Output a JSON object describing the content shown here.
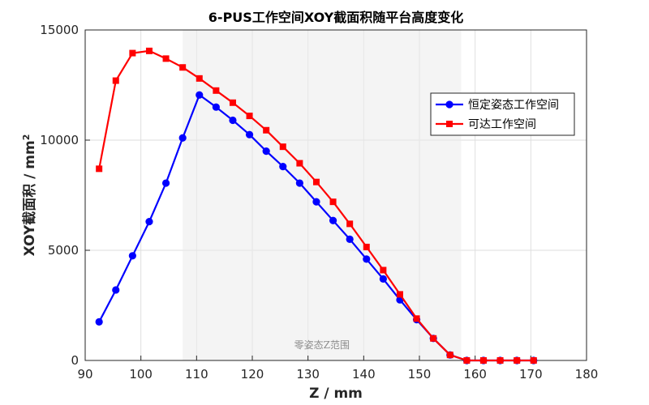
{
  "chart_data": {
    "type": "line",
    "title": "6-PUS工作空间XOY截面积随平台高度变化",
    "xlabel": "Z / mm",
    "ylabel": "XOY截面积 / mm",
    "ylabel_superscript": "2",
    "xlim": [
      90,
      180
    ],
    "ylim": [
      0,
      15000
    ],
    "x_ticks": [
      "90",
      "100",
      "110",
      "120",
      "130",
      "140",
      "150",
      "160",
      "170",
      "180"
    ],
    "y_ticks": [
      "0",
      "5000",
      "10000",
      "15000"
    ],
    "grid": true,
    "legend_position": "right",
    "shaded_region": {
      "label": "零姿态Z范围",
      "x_range": [
        107.5,
        157.5
      ]
    },
    "series": [
      {
        "name": "恒定姿态工作空间",
        "color": "#0000ff",
        "marker": "circle",
        "points": [
          [
            92.5,
            1750
          ],
          [
            95.5,
            3200
          ],
          [
            98.5,
            4750
          ],
          [
            101.5,
            6300
          ],
          [
            104.5,
            8050
          ],
          [
            107.5,
            10100
          ],
          [
            110.5,
            12050
          ],
          [
            113.5,
            11500
          ],
          [
            116.5,
            10900
          ],
          [
            119.5,
            10250
          ],
          [
            122.5,
            9500
          ],
          [
            125.5,
            8800
          ],
          [
            128.5,
            8050
          ],
          [
            131.5,
            7200
          ],
          [
            134.5,
            6350
          ],
          [
            137.5,
            5500
          ],
          [
            140.5,
            4600
          ],
          [
            143.5,
            3700
          ],
          [
            146.5,
            2750
          ],
          [
            149.5,
            1850
          ],
          [
            152.5,
            1000
          ],
          [
            155.5,
            250
          ],
          [
            158.5,
            0
          ],
          [
            161.5,
            0
          ],
          [
            164.5,
            0
          ],
          [
            167.5,
            0
          ],
          [
            170.5,
            0
          ]
        ]
      },
      {
        "name": "可达工作空间",
        "color": "#ff0000",
        "marker": "square",
        "points": [
          [
            92.5,
            8700
          ],
          [
            95.5,
            12700
          ],
          [
            98.5,
            13950
          ],
          [
            101.5,
            14050
          ],
          [
            104.5,
            13700
          ],
          [
            107.5,
            13300
          ],
          [
            110.5,
            12800
          ],
          [
            113.5,
            12250
          ],
          [
            116.5,
            11700
          ],
          [
            119.5,
            11100
          ],
          [
            122.5,
            10450
          ],
          [
            125.5,
            9700
          ],
          [
            128.5,
            8950
          ],
          [
            131.5,
            8100
          ],
          [
            134.5,
            7200
          ],
          [
            137.5,
            6200
          ],
          [
            140.5,
            5150
          ],
          [
            143.5,
            4100
          ],
          [
            146.5,
            3000
          ],
          [
            149.5,
            1900
          ],
          [
            152.5,
            1000
          ],
          [
            155.5,
            250
          ],
          [
            158.5,
            0
          ],
          [
            161.5,
            0
          ],
          [
            164.5,
            0
          ],
          [
            167.5,
            0
          ],
          [
            170.5,
            0
          ]
        ]
      }
    ]
  }
}
